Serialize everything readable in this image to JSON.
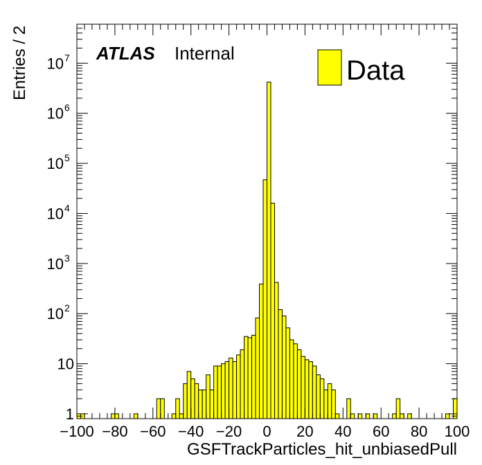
{
  "chart_data": {
    "type": "bar",
    "histogram": true,
    "bin_width": 2,
    "xlabel": "GSFTrackParticles_hit_unbiasedPull",
    "ylabel": "Entries / 2",
    "xlim": [
      -100,
      100
    ],
    "ylim": [
      0.8,
      60000000
    ],
    "yscale": "log",
    "x_ticks": [
      -100,
      -80,
      -60,
      -40,
      -20,
      0,
      20,
      40,
      60,
      80,
      100
    ],
    "y_ticks": [
      {
        "value": 1,
        "base": "1",
        "exp": ""
      },
      {
        "value": 10,
        "base": "10",
        "exp": ""
      },
      {
        "value": 100,
        "base": "10",
        "exp": "2"
      },
      {
        "value": 1000,
        "base": "10",
        "exp": "3"
      },
      {
        "value": 10000,
        "base": "10",
        "exp": "4"
      },
      {
        "value": 100000,
        "base": "10",
        "exp": "5"
      },
      {
        "value": 1000000,
        "base": "10",
        "exp": "6"
      },
      {
        "value": 10000000,
        "base": "10",
        "exp": "7"
      }
    ],
    "bins_low_edge": [
      -100,
      -98,
      -82,
      -80,
      -70,
      -58,
      -56,
      -50,
      -48,
      -46,
      -44,
      -42,
      -40,
      -38,
      -36,
      -34,
      -32,
      -30,
      -28,
      -26,
      -24,
      -22,
      -20,
      -18,
      -16,
      -14,
      -12,
      -10,
      -8,
      -6,
      -4,
      -2,
      0,
      2,
      4,
      6,
      8,
      10,
      12,
      14,
      16,
      18,
      20,
      22,
      24,
      26,
      28,
      30,
      32,
      34,
      36,
      42,
      44,
      48,
      52,
      56,
      66,
      68,
      70,
      74,
      94,
      98
    ],
    "bin_values": [
      1,
      1,
      1,
      1,
      1,
      2,
      2,
      1,
      2,
      1,
      4,
      7,
      5,
      4,
      3,
      3,
      6,
      3,
      9,
      9,
      10,
      11,
      13,
      11,
      15,
      19,
      35,
      33,
      37,
      82,
      390,
      47000,
      4200000,
      16000,
      420,
      120,
      90,
      52,
      30,
      25,
      19,
      14,
      12,
      11,
      9,
      6,
      5,
      3,
      4,
      3,
      1,
      2,
      1,
      1,
      1,
      1,
      1,
      2,
      1,
      1,
      1,
      2
    ],
    "series": [
      {
        "name": "Data",
        "color": "#ffff00",
        "edge_color": "#000000"
      }
    ],
    "legend": {
      "placement": "top-right",
      "label": "Data"
    },
    "annotation": {
      "bold_italic": "ATLAS",
      "normal": "Internal"
    },
    "grid": false
  }
}
